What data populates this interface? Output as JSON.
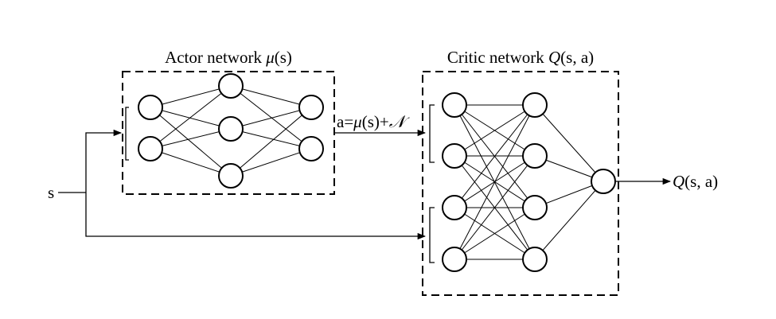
{
  "actor": {
    "title_text": "Actor network ",
    "title_mu": "μ",
    "title_arg": "(s)",
    "layers": [
      2,
      3,
      2
    ]
  },
  "critic": {
    "title_text": "Critic network ",
    "title_q": "Q",
    "title_arg": "(s, a)",
    "layers": [
      4,
      4,
      1
    ]
  },
  "input_label": "s",
  "action_label": {
    "a_eq": "a=",
    "mu": "μ",
    "mid": "(s)+",
    "noise": "𝒩"
  },
  "output_label": {
    "q": "Q",
    "arg": "(s, a)"
  }
}
